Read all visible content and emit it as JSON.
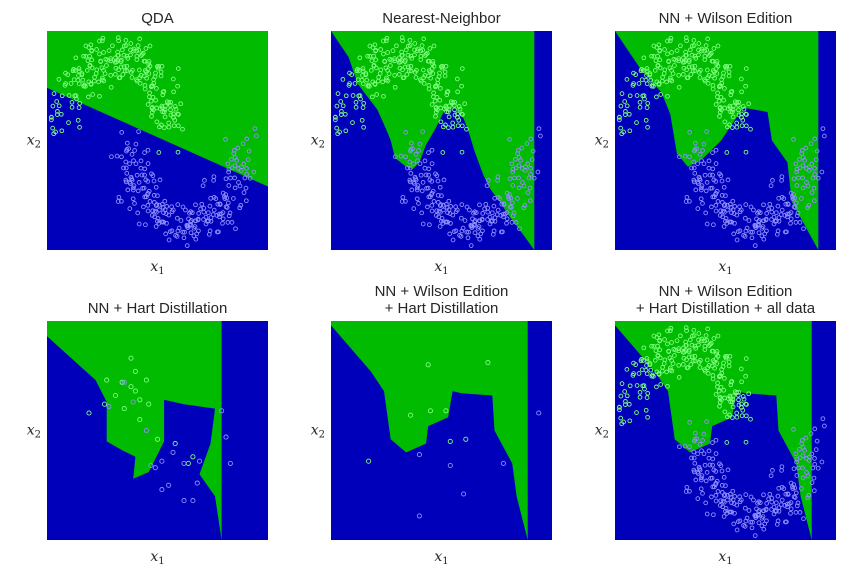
{
  "colors": {
    "class_a_region": "#00bb00",
    "class_b_region": "#0000bb",
    "class_a_point": "#7fff7f",
    "class_b_point": "#8f8fff"
  },
  "chart_data": [
    {
      "type": "scatter",
      "title_lines": [
        "QDA"
      ],
      "xlabel": "x",
      "xlabel_sub": "1",
      "ylabel": "x",
      "ylabel_sub": "2",
      "boundary_A": [
        [
          0.0,
          0.74
        ],
        [
          1.0,
          0.29
        ]
      ],
      "points": "all",
      "grid": false
    },
    {
      "type": "scatter",
      "title_lines": [
        "Nearest-Neighbor"
      ],
      "xlabel": "x",
      "xlabel_sub": "1",
      "ylabel": "x",
      "ylabel_sub": "2",
      "boundary_A": [
        [
          0.0,
          1.0
        ],
        [
          0.08,
          0.88
        ],
        [
          0.12,
          0.76
        ],
        [
          0.21,
          0.64
        ],
        [
          0.25,
          0.55
        ],
        [
          0.27,
          0.5
        ],
        [
          0.29,
          0.42
        ],
        [
          0.34,
          0.38
        ],
        [
          0.37,
          0.37
        ],
        [
          0.4,
          0.4
        ],
        [
          0.43,
          0.48
        ],
        [
          0.47,
          0.55
        ],
        [
          0.51,
          0.63
        ],
        [
          0.56,
          0.65
        ],
        [
          0.6,
          0.6
        ],
        [
          0.62,
          0.55
        ],
        [
          0.65,
          0.45
        ],
        [
          0.69,
          0.34
        ],
        [
          0.72,
          0.28
        ],
        [
          0.77,
          0.21
        ],
        [
          0.81,
          0.15
        ],
        [
          0.87,
          0.07
        ],
        [
          0.92,
          0.0
        ]
      ],
      "points": "all",
      "grid": false
    },
    {
      "type": "scatter",
      "title_lines": [
        "NN + Wilson Edition"
      ],
      "xlabel": "x",
      "xlabel_sub": "1",
      "ylabel": "x",
      "ylabel_sub": "2",
      "boundary_A": [
        [
          0.0,
          1.0
        ],
        [
          0.12,
          0.82
        ],
        [
          0.21,
          0.72
        ],
        [
          0.25,
          0.62
        ],
        [
          0.28,
          0.44
        ],
        [
          0.33,
          0.38
        ],
        [
          0.4,
          0.42
        ],
        [
          0.48,
          0.5
        ],
        [
          0.58,
          0.65
        ],
        [
          0.69,
          0.63
        ],
        [
          0.71,
          0.5
        ],
        [
          0.78,
          0.4
        ],
        [
          0.8,
          0.22
        ],
        [
          0.86,
          0.11
        ],
        [
          0.92,
          0.0
        ]
      ],
      "points": "wilson",
      "grid": false
    },
    {
      "type": "scatter",
      "title_lines": [
        "NN + Hart Distillation"
      ],
      "xlabel": "x",
      "xlabel_sub": "1",
      "ylabel": "x",
      "ylabel_sub": "2",
      "boundary_A": [
        [
          0.0,
          0.93
        ],
        [
          0.22,
          0.73
        ],
        [
          0.27,
          0.63
        ],
        [
          0.27,
          0.45
        ],
        [
          0.34,
          0.41
        ],
        [
          0.4,
          0.38
        ],
        [
          0.39,
          0.28
        ],
        [
          0.46,
          0.31
        ],
        [
          0.53,
          0.45
        ],
        [
          0.53,
          0.64
        ],
        [
          0.62,
          0.62
        ],
        [
          0.76,
          0.6
        ],
        [
          0.74,
          0.44
        ],
        [
          0.69,
          0.3
        ],
        [
          0.76,
          0.2
        ],
        [
          0.79,
          0.0
        ]
      ],
      "points": "hart",
      "grid": false
    },
    {
      "type": "scatter",
      "title_lines": [
        "NN + Wilson Edition",
        " + Hart Distillation"
      ],
      "xlabel": "x",
      "xlabel_sub": "1",
      "ylabel": "x",
      "ylabel_sub": "2",
      "boundary_A": [
        [
          0.0,
          0.98
        ],
        [
          0.18,
          0.77
        ],
        [
          0.24,
          0.68
        ],
        [
          0.27,
          0.46
        ],
        [
          0.34,
          0.4
        ],
        [
          0.43,
          0.44
        ],
        [
          0.44,
          0.52
        ],
        [
          0.53,
          0.56
        ],
        [
          0.55,
          0.68
        ],
        [
          0.59,
          0.67
        ],
        [
          0.73,
          0.66
        ],
        [
          0.74,
          0.5
        ],
        [
          0.82,
          0.35
        ],
        [
          0.84,
          0.2
        ],
        [
          0.89,
          0.0
        ]
      ],
      "points": "wilson_hart",
      "grid": false
    },
    {
      "type": "scatter",
      "title_lines": [
        "NN + Wilson Edition",
        " + Hart Distillation + all data"
      ],
      "xlabel": "x",
      "xlabel_sub": "1",
      "ylabel": "x",
      "ylabel_sub": "2",
      "boundary_A": [
        [
          0.0,
          0.98
        ],
        [
          0.18,
          0.77
        ],
        [
          0.24,
          0.68
        ],
        [
          0.27,
          0.46
        ],
        [
          0.34,
          0.4
        ],
        [
          0.43,
          0.44
        ],
        [
          0.44,
          0.52
        ],
        [
          0.53,
          0.56
        ],
        [
          0.55,
          0.68
        ],
        [
          0.59,
          0.67
        ],
        [
          0.73,
          0.66
        ],
        [
          0.74,
          0.5
        ],
        [
          0.82,
          0.35
        ],
        [
          0.84,
          0.2
        ],
        [
          0.89,
          0.0
        ]
      ],
      "points": "all",
      "grid": false
    }
  ]
}
